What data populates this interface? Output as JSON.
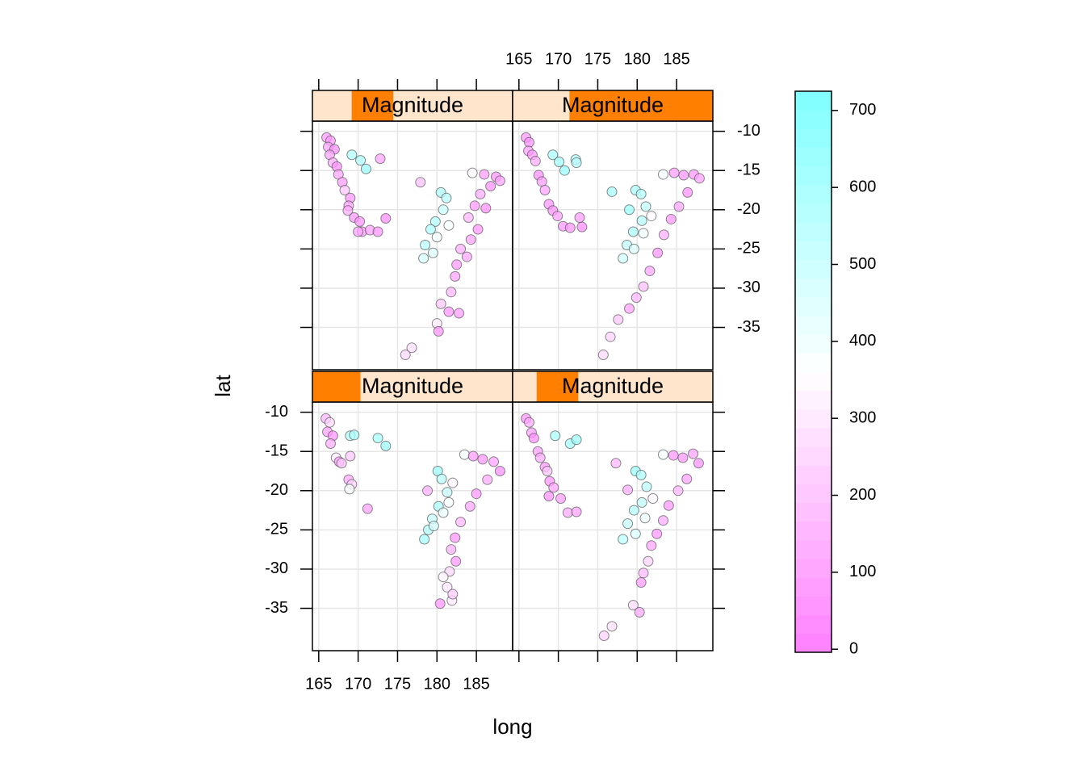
{
  "chart_data": {
    "type": "scatter",
    "x_label": "long",
    "y_label": "lat",
    "strip_name": "Magnitude",
    "shingle_range": [
      3.95,
      6.45
    ],
    "xlim": [
      164.2,
      189.6
    ],
    "ylim": [
      -40.4,
      -8.7
    ],
    "xticks": [
      165,
      170,
      175,
      180,
      185
    ],
    "yticks": [
      -10,
      -15,
      -20,
      -25,
      -30,
      -35
    ],
    "grid": true,
    "colorkey_lim": [
      -4,
      725
    ],
    "colorkey_ticks": [
      0,
      100,
      200,
      300,
      400,
      500,
      600,
      700
    ],
    "colors": [
      "#ff80ff",
      "#ffffff",
      "#80ffff"
    ],
    "strip_colors": [
      "#ffe5cc",
      "#ff7f00"
    ],
    "panels": [
      {
        "interval": [
          3.95,
          4.55
        ],
        "long": [
          165.9,
          166.4,
          166.1,
          166.8,
          166.5,
          167.2,
          167.6,
          167.9,
          168.8,
          169.2,
          168.9,
          169.0,
          171.2,
          169.0,
          169.5,
          172.5,
          173.5,
          178.8,
          180.1,
          180.6,
          181.3,
          180.2,
          179.4,
          178.9,
          178.4,
          179.6,
          180.8,
          181.5,
          182.0,
          183.5,
          184.6,
          185.8,
          187.2,
          188.0,
          186.4,
          185.0,
          184.2,
          183.0,
          182.3,
          181.8,
          182.4,
          181.6,
          180.8,
          181.3,
          180.4,
          181.9,
          182.0
        ],
        "lat": [
          -10.8,
          -11.3,
          -12.5,
          -13.0,
          -14.0,
          -15.8,
          -16.3,
          -16.5,
          -18.6,
          -19.2,
          -19.8,
          -13.0,
          -22.3,
          -15.6,
          -12.9,
          -13.3,
          -14.3,
          -20.0,
          -17.5,
          -18.5,
          -20.2,
          -22.0,
          -23.6,
          -25.0,
          -26.2,
          -24.5,
          -22.8,
          -21.5,
          -19.0,
          -15.4,
          -15.6,
          -16.0,
          -16.3,
          -17.5,
          -18.6,
          -20.4,
          -22.0,
          -24.0,
          -26.0,
          -27.5,
          -29.0,
          -30.3,
          -31.0,
          -32.3,
          -34.4,
          -34.0,
          -33.2
        ],
        "depth": [
          150,
          240,
          90,
          60,
          120,
          300,
          80,
          200,
          110,
          230,
          380,
          560,
          90,
          200,
          600,
          620,
          650,
          130,
          640,
          560,
          520,
          600,
          520,
          580,
          620,
          480,
          420,
          380,
          330,
          390,
          80,
          60,
          90,
          40,
          120,
          70,
          100,
          150,
          60,
          130,
          70,
          250,
          330,
          290,
          60,
          300,
          220
        ]
      },
      {
        "interval": [
          4.25,
          4.77
        ],
        "long": [
          165.9,
          166.3,
          166.6,
          166.9,
          167.4,
          167.7,
          168.3,
          168.6,
          168.9,
          169.4,
          170.3,
          171.2,
          172.3,
          168.8,
          169.6,
          171.5,
          172.3,
          177.3,
          178.8,
          179.8,
          180.5,
          181.2,
          180.6,
          179.6,
          178.8,
          178.2,
          179.8,
          181.0,
          182.0,
          183.3,
          184.6,
          185.8,
          187.1,
          187.8,
          186.3,
          185.2,
          184.0,
          183.3,
          182.5,
          181.8,
          181.4,
          180.8,
          180.5,
          179.5,
          180.3,
          176.8,
          175.8
        ],
        "lat": [
          -10.8,
          -11.3,
          -12.6,
          -13.3,
          -15.0,
          -15.8,
          -17.0,
          -17.5,
          -18.8,
          -19.6,
          -21.0,
          -22.8,
          -22.7,
          -20.7,
          -13.0,
          -14.0,
          -13.5,
          -16.5,
          -19.9,
          -17.5,
          -18.0,
          -19.5,
          -21.5,
          -22.5,
          -24.2,
          -26.2,
          -25.5,
          -23.5,
          -21.0,
          -15.4,
          -15.5,
          -15.8,
          -15.3,
          -16.5,
          -18.5,
          -20.0,
          -21.9,
          -23.8,
          -25.5,
          -27.0,
          -29.0,
          -30.5,
          -31.7,
          -34.6,
          -35.5,
          -37.3,
          -38.5
        ],
        "depth": [
          60,
          110,
          80,
          40,
          90,
          120,
          70,
          200,
          60,
          100,
          80,
          120,
          90,
          50,
          600,
          620,
          640,
          150,
          120,
          650,
          590,
          560,
          540,
          580,
          520,
          560,
          470,
          410,
          340,
          380,
          70,
          60,
          100,
          50,
          90,
          150,
          70,
          120,
          60,
          100,
          230,
          160,
          80,
          260,
          110,
          270,
          230
        ]
      },
      {
        "interval": [
          4.44,
          4.96
        ],
        "long": [
          166.0,
          166.5,
          166.2,
          167.0,
          166.4,
          166.8,
          167.3,
          167.5,
          168.0,
          168.3,
          169.0,
          168.8,
          168.7,
          169.5,
          170.2,
          170.5,
          171.5,
          172.5,
          173.5,
          170.0,
          169.2,
          170.3,
          171.0,
          172.8,
          177.9,
          180.5,
          181.2,
          180.8,
          179.8,
          179.2,
          178.5,
          178.3,
          179.5,
          180.0,
          181.5,
          184.5,
          186.0,
          187.5,
          188.0,
          186.8,
          185.5,
          184.8,
          186.2,
          184.0,
          185.2,
          184.3,
          183.0,
          182.5,
          183.8,
          182.3,
          181.8,
          180.5,
          181.5,
          182.8,
          180.0,
          180.2,
          176.0,
          176.8
        ],
        "lat": [
          -10.8,
          -11.2,
          -12.0,
          -12.3,
          -13.0,
          -14.0,
          -14.5,
          -15.5,
          -16.5,
          -17.5,
          -18.5,
          -19.5,
          -20.1,
          -21.0,
          -21.5,
          -22.8,
          -22.6,
          -22.8,
          -21.1,
          -22.8,
          -13.0,
          -13.7,
          -14.8,
          -13.5,
          -16.5,
          -17.8,
          -18.5,
          -20.0,
          -21.5,
          -22.5,
          -24.5,
          -26.2,
          -25.5,
          -23.5,
          -22.0,
          -15.3,
          -15.5,
          -15.8,
          -16.3,
          -17.0,
          -18.0,
          -19.5,
          -19.8,
          -21.0,
          -22.5,
          -23.8,
          -25.0,
          -27.0,
          -26.0,
          -28.5,
          -30.5,
          -32.0,
          -33.0,
          -33.2,
          -34.5,
          -35.5,
          -38.5,
          -37.6
        ],
        "depth": [
          80,
          60,
          100,
          40,
          90,
          120,
          50,
          100,
          80,
          200,
          60,
          90,
          120,
          70,
          50,
          80,
          90,
          60,
          40,
          100,
          590,
          600,
          640,
          100,
          180,
          600,
          560,
          520,
          580,
          600,
          560,
          480,
          450,
          400,
          380,
          350,
          80,
          60,
          90,
          50,
          120,
          70,
          40,
          150,
          60,
          90,
          130,
          70,
          110,
          90,
          150,
          200,
          60,
          80,
          300,
          60,
          250,
          270
        ]
      },
      {
        "interval": [
          4.66,
          6.45
        ],
        "long": [
          165.9,
          166.3,
          166.2,
          166.7,
          167.1,
          167.5,
          167.9,
          168.3,
          168.8,
          169.3,
          169.9,
          170.6,
          171.5,
          172.7,
          173.0,
          169.3,
          170.1,
          170.8,
          172.2,
          172.3,
          176.8,
          179.0,
          179.8,
          180.5,
          181.1,
          180.6,
          179.5,
          178.7,
          178.2,
          179.6,
          180.8,
          181.8,
          183.3,
          184.7,
          185.9,
          187.2,
          187.9,
          186.4,
          185.3,
          184.3,
          183.4,
          182.6,
          181.6,
          180.8,
          179.9,
          179.0,
          177.6,
          176.6,
          175.7
        ],
        "lat": [
          -10.8,
          -11.4,
          -12.5,
          -13.0,
          -13.8,
          -15.6,
          -16.4,
          -17.5,
          -19.3,
          -20.1,
          -20.8,
          -22.1,
          -22.3,
          -21.0,
          -22.2,
          -13.0,
          -13.9,
          -15.0,
          -13.6,
          -14.0,
          -17.7,
          -20.0,
          -17.5,
          -18.0,
          -19.6,
          -21.4,
          -22.8,
          -24.5,
          -26.2,
          -25.0,
          -23.0,
          -20.8,
          -15.5,
          -15.3,
          -15.6,
          -15.5,
          -16.0,
          -17.8,
          -19.6,
          -21.2,
          -23.2,
          -25.5,
          -27.8,
          -29.8,
          -31.2,
          -32.6,
          -34.0,
          -36.2,
          -38.5
        ],
        "depth": [
          70,
          50,
          90,
          60,
          120,
          40,
          80,
          100,
          60,
          50,
          90,
          70,
          60,
          80,
          40,
          610,
          630,
          650,
          580,
          560,
          620,
          650,
          600,
          580,
          540,
          570,
          600,
          540,
          500,
          460,
          400,
          350,
          380,
          80,
          60,
          70,
          90,
          50,
          110,
          70,
          130,
          60,
          100,
          180,
          150,
          90,
          200,
          230,
          250
        ]
      }
    ]
  }
}
